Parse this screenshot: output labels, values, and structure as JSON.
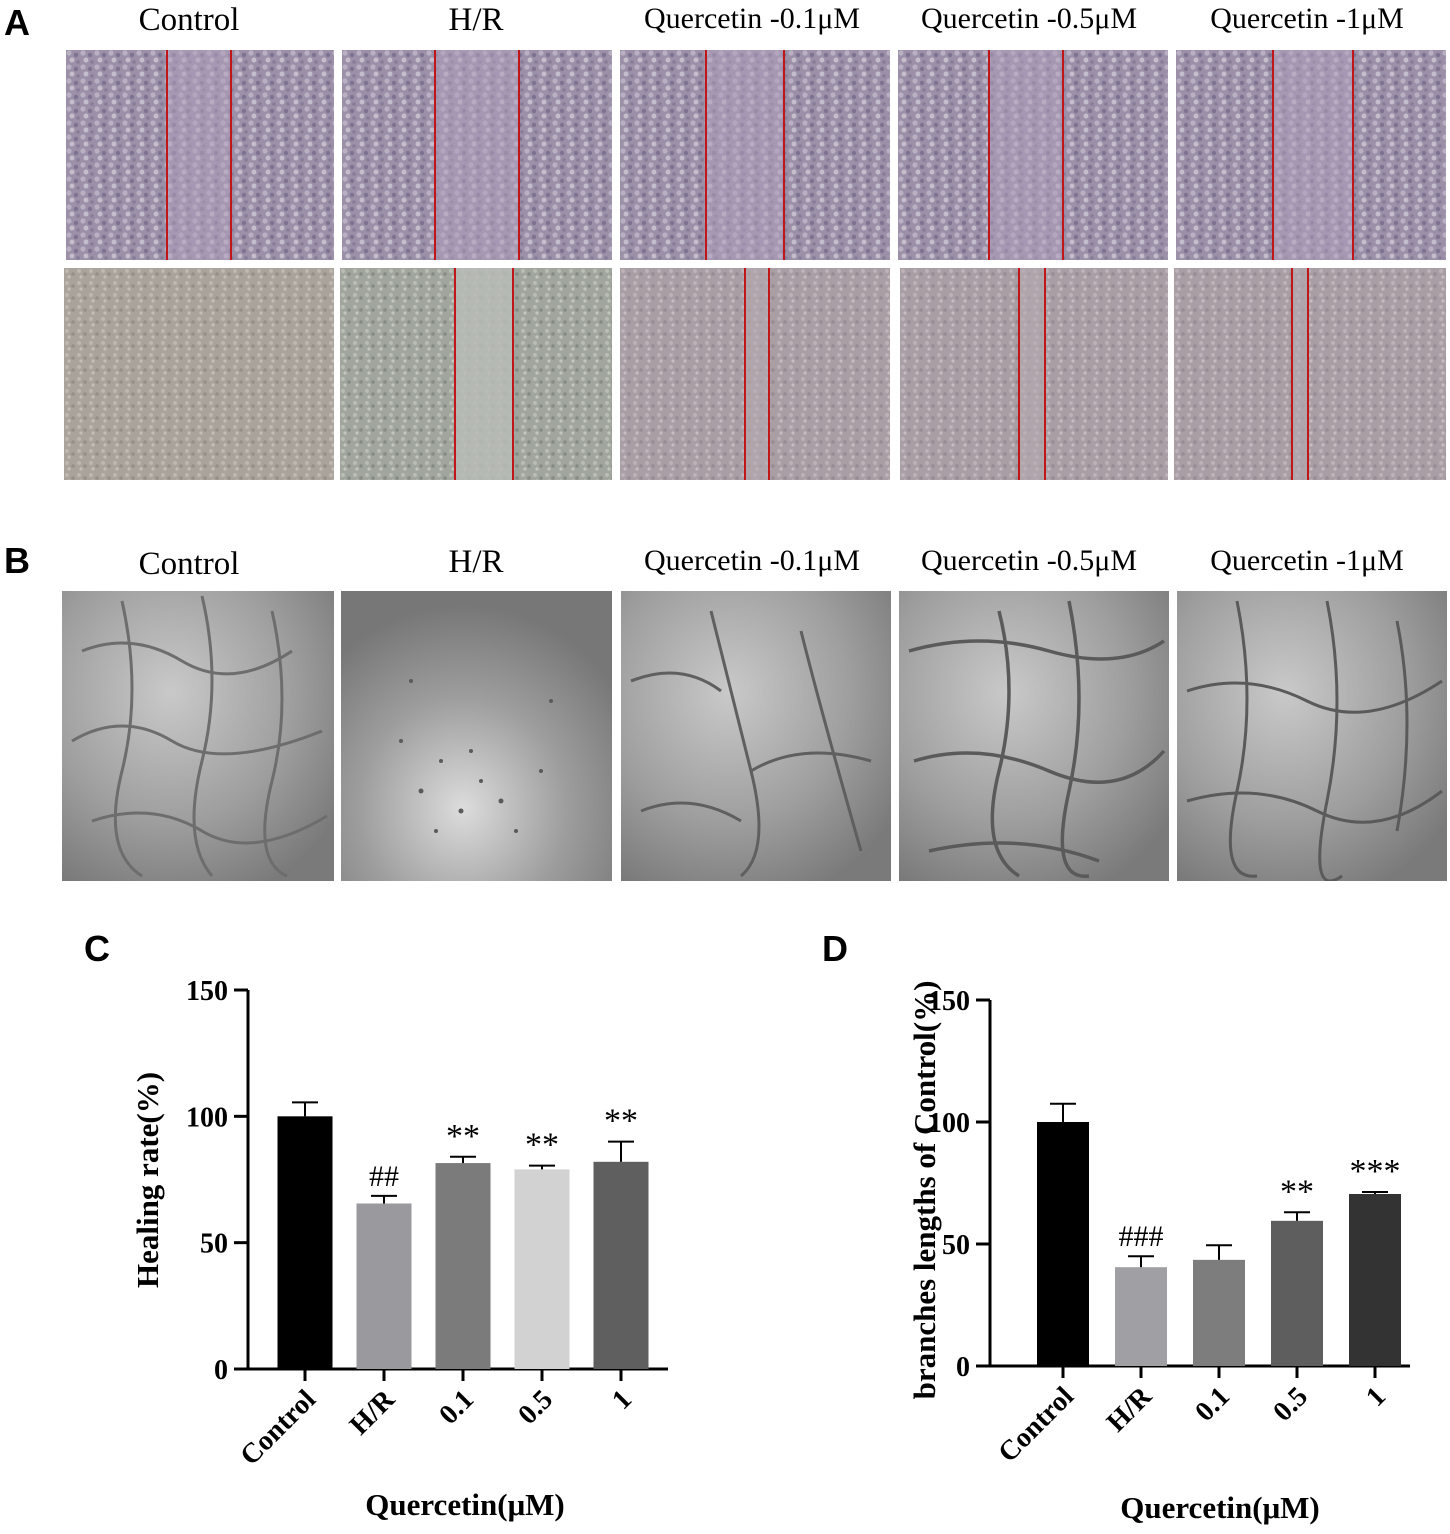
{
  "panels": {
    "A": {
      "letter": "A",
      "column_labels": [
        "Control",
        "H/R",
        "Quercetin -0.1μM",
        "Quercetin -0.5μM",
        "Quercetin -1μM"
      ]
    },
    "B": {
      "letter": "B",
      "column_labels": [
        "Control",
        "H/R",
        "Quercetin -0.1μM",
        "Quercetin -0.5μM",
        "Quercetin -1μM"
      ]
    },
    "C": {
      "letter": "C"
    },
    "D": {
      "letter": "D"
    }
  },
  "colors": {
    "wound_line": "#c0161a",
    "bar_control": "#000000",
    "bar_hr_c": "#9a9a9e",
    "bar_01_c": "#7b7b7b",
    "bar_05_c": "#d2d2d2",
    "bar_1_c": "#5f5f5f",
    "bar_hr_d": "#a0a0a4",
    "bar_01_d": "#7d7d7d",
    "bar_05_d": "#5e5e5e",
    "bar_1_d": "#333333"
  },
  "chart_data": [
    {
      "type": "bar",
      "panel": "C",
      "categories": [
        "Control",
        "H/R",
        "0.1",
        "0.5",
        "1"
      ],
      "values": [
        100,
        65.5,
        81.5,
        79,
        82
      ],
      "errors": [
        5.5,
        3,
        2.5,
        1.5,
        8
      ],
      "annotations": [
        "",
        "##",
        "**",
        "**",
        "**"
      ],
      "xlabel": "Quercetin(μM)",
      "ylabel": "Healing rate(%)",
      "ylim": [
        0,
        150
      ],
      "yticks": [
        0,
        50,
        100,
        150
      ],
      "grid": false
    },
    {
      "type": "bar",
      "panel": "D",
      "categories": [
        "Control",
        "H/R",
        "0.1",
        "0.5",
        "1"
      ],
      "values": [
        100,
        40.5,
        43.5,
        59.5,
        70.5
      ],
      "errors": [
        7.5,
        4.5,
        6,
        3.5,
        0.8
      ],
      "annotations": [
        "",
        "###",
        "",
        "**",
        "***"
      ],
      "xlabel": "Quercetin(μM)",
      "ylabel": "branches lengths of Control(%)",
      "ylim": [
        0,
        150
      ],
      "yticks": [
        0,
        50,
        100,
        150
      ],
      "grid": false
    }
  ]
}
